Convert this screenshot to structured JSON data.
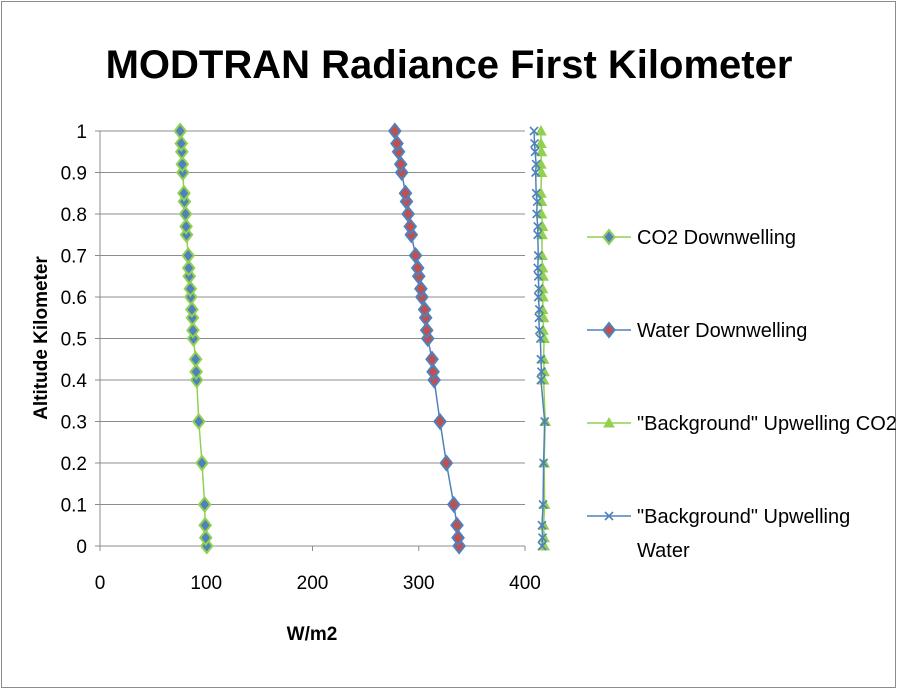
{
  "chart_data": {
    "type": "line",
    "title": "MODTRAN Radiance First Kilometer",
    "xlabel": "W/m2",
    "ylabel": "Altitude Kilometer",
    "xlim": [
      0,
      400
    ],
    "ylim": [
      0,
      1
    ],
    "x_ticks": [
      "0",
      "100",
      "200",
      "300",
      "400"
    ],
    "y_ticks": [
      "0",
      "0.1",
      "0.2",
      "0.3",
      "0.4",
      "0.5",
      "0.6",
      "0.7",
      "0.8",
      "0.9",
      "1"
    ],
    "grid": "horizontal",
    "legend_position": "right",
    "series": [
      {
        "name": "CO2 Downwelling",
        "marker": "diamond",
        "line_color": "#92d050",
        "marker_fill": "#4f81bd",
        "marker_edge": "#92d050",
        "points": [
          [
            100.5,
            0.0
          ],
          [
            99.5,
            0.02
          ],
          [
            99.0,
            0.05
          ],
          [
            98.5,
            0.1
          ],
          [
            96.0,
            0.2
          ],
          [
            93.0,
            0.3
          ],
          [
            91.0,
            0.4
          ],
          [
            90.5,
            0.42
          ],
          [
            90.0,
            0.45
          ],
          [
            88.0,
            0.5
          ],
          [
            87.5,
            0.52
          ],
          [
            87.0,
            0.55
          ],
          [
            86.5,
            0.57
          ],
          [
            85.5,
            0.6
          ],
          [
            85.0,
            0.62
          ],
          [
            84.0,
            0.65
          ],
          [
            83.5,
            0.67
          ],
          [
            83.0,
            0.7
          ],
          [
            81.5,
            0.75
          ],
          [
            81.0,
            0.77
          ],
          [
            80.5,
            0.8
          ],
          [
            79.5,
            0.83
          ],
          [
            79.0,
            0.85
          ],
          [
            78.0,
            0.9
          ],
          [
            77.5,
            0.92
          ],
          [
            77.0,
            0.95
          ],
          [
            76.5,
            0.97
          ],
          [
            75.5,
            1.0
          ]
        ]
      },
      {
        "name": "Water Downwelling",
        "marker": "diamond",
        "line_color": "#4f81bd",
        "marker_fill": "#c0504d",
        "marker_edge": "#4f81bd",
        "points": [
          [
            338.0,
            0.0
          ],
          [
            337.0,
            0.02
          ],
          [
            336.0,
            0.05
          ],
          [
            333.0,
            0.1
          ],
          [
            326.0,
            0.2
          ],
          [
            320.0,
            0.3
          ],
          [
            314.5,
            0.4
          ],
          [
            313.5,
            0.42
          ],
          [
            312.5,
            0.45
          ],
          [
            308.5,
            0.5
          ],
          [
            307.5,
            0.52
          ],
          [
            306.5,
            0.55
          ],
          [
            305.5,
            0.57
          ],
          [
            303.0,
            0.6
          ],
          [
            302.0,
            0.62
          ],
          [
            300.0,
            0.65
          ],
          [
            299.0,
            0.67
          ],
          [
            297.0,
            0.7
          ],
          [
            293.0,
            0.75
          ],
          [
            292.0,
            0.77
          ],
          [
            290.0,
            0.8
          ],
          [
            288.5,
            0.83
          ],
          [
            287.5,
            0.85
          ],
          [
            284.0,
            0.9
          ],
          [
            283.0,
            0.92
          ],
          [
            281.0,
            0.95
          ],
          [
            279.5,
            0.97
          ],
          [
            277.5,
            1.0
          ]
        ]
      },
      {
        "name": "\"Background\" Upwelling CO2",
        "marker": "triangle",
        "line_color": "#92d050",
        "marker_fill": "#92d050",
        "marker_edge": "#92d050",
        "points": [
          [
            418.0,
            0.0
          ],
          [
            418.0,
            0.02
          ],
          [
            417.5,
            0.05
          ],
          [
            418.5,
            0.1
          ],
          [
            418.0,
            0.2
          ],
          [
            419.0,
            0.3
          ],
          [
            417.5,
            0.4
          ],
          [
            418.0,
            0.42
          ],
          [
            417.5,
            0.45
          ],
          [
            418.0,
            0.5
          ],
          [
            417.0,
            0.52
          ],
          [
            417.5,
            0.55
          ],
          [
            416.5,
            0.57
          ],
          [
            417.0,
            0.6
          ],
          [
            416.5,
            0.62
          ],
          [
            417.0,
            0.65
          ],
          [
            416.5,
            0.67
          ],
          [
            416.0,
            0.7
          ],
          [
            416.0,
            0.75
          ],
          [
            416.5,
            0.77
          ],
          [
            415.5,
            0.8
          ],
          [
            415.5,
            0.83
          ],
          [
            415.0,
            0.85
          ],
          [
            415.5,
            0.9
          ],
          [
            415.0,
            0.92
          ],
          [
            415.5,
            0.95
          ],
          [
            415.0,
            0.97
          ],
          [
            415.0,
            1.0
          ]
        ]
      },
      {
        "name": "\"Background\" Upwelling Water",
        "marker": "x",
        "line_color": "#4f81bd",
        "marker_fill": "none",
        "marker_edge": "#4f81bd",
        "points": [
          [
            416.0,
            0.0
          ],
          [
            416.5,
            0.02
          ],
          [
            416.0,
            0.05
          ],
          [
            417.0,
            0.1
          ],
          [
            417.5,
            0.2
          ],
          [
            418.5,
            0.3
          ],
          [
            415.0,
            0.4
          ],
          [
            415.5,
            0.42
          ],
          [
            415.0,
            0.45
          ],
          [
            414.5,
            0.5
          ],
          [
            413.5,
            0.52
          ],
          [
            413.0,
            0.55
          ],
          [
            413.5,
            0.57
          ],
          [
            412.5,
            0.6
          ],
          [
            413.0,
            0.62
          ],
          [
            412.5,
            0.65
          ],
          [
            412.0,
            0.67
          ],
          [
            412.5,
            0.7
          ],
          [
            412.0,
            0.75
          ],
          [
            412.0,
            0.77
          ],
          [
            411.0,
            0.8
          ],
          [
            411.5,
            0.83
          ],
          [
            410.5,
            0.85
          ],
          [
            410.0,
            0.9
          ],
          [
            410.5,
            0.92
          ],
          [
            409.5,
            0.95
          ],
          [
            409.0,
            0.97
          ],
          [
            408.5,
            1.0
          ]
        ]
      }
    ]
  }
}
